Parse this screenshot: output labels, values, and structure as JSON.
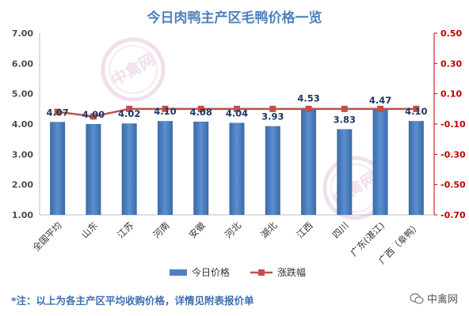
{
  "chart_data": {
    "type": "bar",
    "title": "今日肉鸭主产区毛鸭价格一览",
    "categories": [
      "全国平均",
      "山东",
      "江苏",
      "河南",
      "安徽",
      "河北",
      "湖北",
      "江西",
      "四川",
      "广东(湛江)",
      "广西（阜鸭）"
    ],
    "series": [
      {
        "name": "今日价格",
        "type": "bar",
        "axis": "left",
        "color": "#4f81bd",
        "values": [
          4.07,
          4.0,
          4.02,
          4.1,
          4.08,
          4.04,
          3.93,
          4.53,
          3.83,
          4.47,
          4.1
        ],
        "labels": [
          "4.07",
          "4.00",
          "4.02",
          "4.10",
          "4.08",
          "4.04",
          "3.93",
          "4.53",
          "3.83",
          "4.47",
          "4.10"
        ]
      },
      {
        "name": "涨跌幅",
        "type": "line",
        "axis": "right",
        "color": "#c0504d",
        "values": [
          -0.02,
          -0.05,
          0.0,
          0.0,
          0.0,
          0.0,
          0.0,
          0.0,
          0.0,
          0.0,
          0.0
        ]
      }
    ],
    "y_left": {
      "min": 1.0,
      "max": 7.0,
      "ticks": [
        "1.00",
        "2.00",
        "3.00",
        "4.00",
        "5.00",
        "6.00",
        "7.00"
      ]
    },
    "y_right": {
      "min": -0.7,
      "max": 0.5,
      "ticks": [
        "-0.70",
        "-0.50",
        "-0.30",
        "-0.10",
        "0.10",
        "0.30",
        "0.50"
      ],
      "color": "#c00000"
    },
    "grid": false,
    "legend_position": "bottom"
  },
  "watermark_text": "中禽网",
  "footnote": "*注：以上为各主产区平均收购价格，详情见附表报价单",
  "source": "中禽网"
}
